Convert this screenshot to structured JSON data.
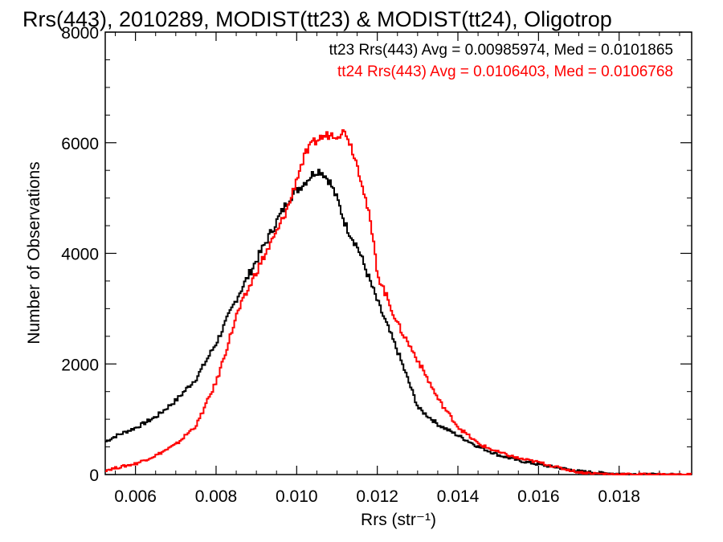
{
  "chart_data": {
    "type": "line",
    "title": "Rrs(443), 2010289, MODIST(tt23) & MODIST(tt24), Oligotrop",
    "xlabel": "Rrs (str⁻¹)",
    "ylabel": "Number of Observations",
    "xlim": [
      0.00525,
      0.0198
    ],
    "ylim": [
      0,
      8000
    ],
    "xticks": [
      0.006,
      0.008,
      0.01,
      0.012,
      0.014,
      0.016,
      0.018
    ],
    "xtick_labels": [
      "0.006",
      "0.008",
      "0.010",
      "0.012",
      "0.014",
      "0.016",
      "0.018"
    ],
    "yticks": [
      0,
      2000,
      4000,
      6000,
      8000
    ],
    "ytick_labels": [
      "0",
      "2000",
      "4000",
      "6000",
      "8000"
    ],
    "grid": false,
    "legend_position": "top-right",
    "series": [
      {
        "name": "tt23",
        "legend": "tt23 Rrs(443) Avg = 0.00985974, Med = 0.0101865",
        "color": "#000000",
        "x": [
          0.00525,
          0.0055,
          0.006,
          0.0065,
          0.007,
          0.0075,
          0.008,
          0.0085,
          0.009,
          0.0095,
          0.0098,
          0.01,
          0.0102,
          0.0104,
          0.0105,
          0.0106,
          0.0108,
          0.011,
          0.0112,
          0.0115,
          0.012,
          0.0125,
          0.013,
          0.0135,
          0.014,
          0.0145,
          0.015,
          0.0155,
          0.016,
          0.0165,
          0.017,
          0.0175,
          0.018,
          0.0185,
          0.019,
          0.0198
        ],
        "y": [
          600,
          700,
          850,
          1050,
          1350,
          1750,
          2400,
          3200,
          3900,
          4600,
          5000,
          5150,
          5300,
          5450,
          5500,
          5480,
          5300,
          4950,
          4500,
          4100,
          3100,
          2200,
          1200,
          900,
          700,
          500,
          350,
          250,
          180,
          120,
          60,
          30,
          15,
          5,
          0,
          0
        ]
      },
      {
        "name": "tt24",
        "legend": "tt24 Rrs(443) Avg = 0.0106403, Med = 0.0106768",
        "color": "#ff0000",
        "x": [
          0.00525,
          0.0055,
          0.006,
          0.0065,
          0.007,
          0.0075,
          0.008,
          0.0085,
          0.009,
          0.0095,
          0.0098,
          0.01,
          0.0102,
          0.0104,
          0.0106,
          0.0108,
          0.011,
          0.0112,
          0.0114,
          0.0116,
          0.0118,
          0.012,
          0.0125,
          0.013,
          0.0135,
          0.014,
          0.0145,
          0.015,
          0.0155,
          0.016,
          0.0165,
          0.017,
          0.0175,
          0.018,
          0.019,
          0.0198
        ],
        "y": [
          80,
          120,
          200,
          350,
          550,
          900,
          1700,
          2900,
          3700,
          4400,
          4900,
          5400,
          5800,
          6000,
          6100,
          6150,
          6150,
          6200,
          5800,
          5300,
          4600,
          3600,
          2700,
          2050,
          1350,
          850,
          550,
          400,
          290,
          220,
          120,
          40,
          15,
          5,
          0,
          0
        ]
      }
    ]
  }
}
